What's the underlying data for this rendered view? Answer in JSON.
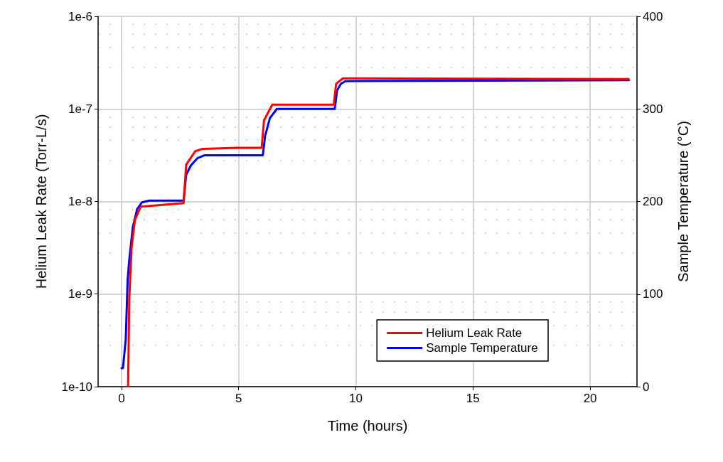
{
  "chart_data": {
    "type": "line",
    "xlabel": "Time (hours)",
    "ylabel": "Helium Leak Rate (Torr-L/s)",
    "y2label": "Sample Temperature (°C)",
    "xlim": [
      -1,
      22
    ],
    "xticks": [
      0,
      5,
      10,
      15,
      20
    ],
    "ylim": [
      1e-10,
      1e-06
    ],
    "yticks": [
      {
        "value": 1e-10,
        "label": "1e-10"
      },
      {
        "value": 1e-09,
        "label": "1e-9"
      },
      {
        "value": 1e-08,
        "label": "1e-8"
      },
      {
        "value": 1e-07,
        "label": "1e-7"
      },
      {
        "value": 1e-06,
        "label": "1e-6"
      }
    ],
    "y2lim": [
      0,
      400
    ],
    "y2ticks": [
      0,
      100,
      200,
      300,
      400
    ],
    "log": "y",
    "grid": true,
    "legend": "bottom right",
    "marker": "none",
    "line_style": "solid",
    "series": [
      {
        "name": "Helium Leak Rate",
        "color": "#ff0000",
        "x": [
          0.28,
          0.33,
          0.43,
          0.57,
          0.82,
          2.65,
          2.76,
          3.15,
          3.45,
          4.94,
          5.98,
          6.08,
          6.43,
          9.06,
          9.16,
          9.45,
          21.65
        ],
        "values": [
          1e-10,
          8.9e-10,
          3.2e-09,
          6.3e-09,
          8.8e-09,
          9.6e-09,
          2.5e-08,
          3.5e-08,
          3.7e-08,
          3.8e-08,
          3.8e-08,
          7.5e-08,
          1.11e-07,
          1.11e-07,
          1.87e-07,
          2.14e-07,
          2.1e-07
        ]
      },
      {
        "name": "Sample Temperature",
        "color": "#0000ff",
        "axis": "y2",
        "x": [
          0,
          0.06,
          0.18,
          0.26,
          0.33,
          0.48,
          0.67,
          0.87,
          1.17,
          2.65,
          2.76,
          2.96,
          3.25,
          3.55,
          6.03,
          6.13,
          6.33,
          6.63,
          9.1,
          9.2,
          9.36,
          9.55,
          21.65
        ],
        "values": [
          20,
          20,
          51,
          115,
          137,
          172,
          192,
          199,
          201,
          201,
          229,
          239,
          247,
          250,
          250,
          271,
          290,
          300,
          300,
          320,
          327,
          330,
          331
        ]
      }
    ]
  }
}
